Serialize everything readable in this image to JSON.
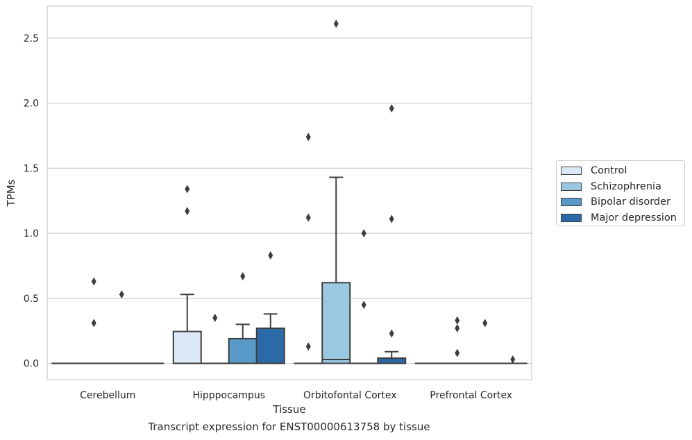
{
  "chart_data": {
    "type": "boxplot",
    "caption": "Transcript expression for ENST00000613758 by tissue",
    "xlabel": "Tissue",
    "ylabel": "TPMs",
    "ylim": [
      -0.125,
      2.745
    ],
    "yticks": [
      "0.0",
      "0.5",
      "1.0",
      "1.5",
      "2.0",
      "2.5"
    ],
    "ytick_values": [
      0,
      0.5,
      1.0,
      1.5,
      2.0,
      2.5
    ],
    "grid": "horizontal",
    "legend_position": "right",
    "categories": [
      "Cerebellum",
      "Hipppocampus",
      "Orbitofontal Cortex",
      "Prefrontal Cortex"
    ],
    "series": [
      {
        "name": "Control",
        "color": "#dbe9f6",
        "boxes": [
          {
            "q1": 0,
            "median": 0,
            "q3": 0,
            "whisker_low": 0,
            "whisker_high": 0,
            "outliers": []
          },
          {
            "q1": 0,
            "median": 0,
            "q3": 0.245,
            "whisker_low": 0,
            "whisker_high": 0.53,
            "outliers": [
              1.34,
              1.17
            ]
          },
          {
            "q1": 0,
            "median": 0,
            "q3": 0,
            "whisker_low": 0,
            "whisker_high": 0,
            "outliers": [
              1.74,
              1.12,
              0.13
            ]
          },
          {
            "q1": 0,
            "median": 0,
            "q3": 0,
            "whisker_low": 0,
            "whisker_high": 0,
            "outliers": []
          }
        ]
      },
      {
        "name": "Schizophrenia",
        "color": "#9ac8e0",
        "boxes": [
          {
            "q1": 0,
            "median": 0,
            "q3": 0,
            "whisker_low": 0,
            "whisker_high": 0,
            "outliers": [
              0.63,
              0.31
            ]
          },
          {
            "q1": 0,
            "median": 0,
            "q3": 0,
            "whisker_low": 0,
            "whisker_high": 0,
            "outliers": [
              0.35
            ]
          },
          {
            "q1": 0,
            "median": 0.03,
            "q3": 0.62,
            "whisker_low": 0,
            "whisker_high": 1.43,
            "outliers": [
              2.61
            ]
          },
          {
            "q1": 0,
            "median": 0,
            "q3": 0,
            "whisker_low": 0,
            "whisker_high": 0,
            "outliers": [
              0.33,
              0.27,
              0.08
            ]
          }
        ]
      },
      {
        "name": "Bipolar disorder",
        "color": "#5a9ac9",
        "boxes": [
          {
            "q1": 0,
            "median": 0,
            "q3": 0,
            "whisker_low": 0,
            "whisker_high": 0,
            "outliers": [
              0.53
            ]
          },
          {
            "q1": 0,
            "median": 0,
            "q3": 0.19,
            "whisker_low": 0,
            "whisker_high": 0.3,
            "outliers": [
              0.67
            ]
          },
          {
            "q1": 0,
            "median": 0,
            "q3": 0,
            "whisker_low": 0,
            "whisker_high": 0,
            "outliers": [
              1.0,
              0.45
            ]
          },
          {
            "q1": 0,
            "median": 0,
            "q3": 0,
            "whisker_low": 0,
            "whisker_high": 0,
            "outliers": [
              0.31
            ]
          }
        ]
      },
      {
        "name": "Major depression",
        "color": "#2b6aa7",
        "boxes": [
          {
            "q1": 0,
            "median": 0,
            "q3": 0,
            "whisker_low": 0,
            "whisker_high": 0,
            "outliers": []
          },
          {
            "q1": 0,
            "median": 0,
            "q3": 0.27,
            "whisker_low": 0,
            "whisker_high": 0.38,
            "outliers": [
              0.83
            ]
          },
          {
            "q1": 0,
            "median": 0,
            "q3": 0.04,
            "whisker_low": 0,
            "whisker_high": 0.09,
            "outliers": [
              1.96,
              1.11,
              0.23
            ]
          },
          {
            "q1": 0,
            "median": 0,
            "q3": 0,
            "whisker_low": 0,
            "whisker_high": 0,
            "outliers": [
              0.03
            ]
          }
        ]
      }
    ]
  }
}
